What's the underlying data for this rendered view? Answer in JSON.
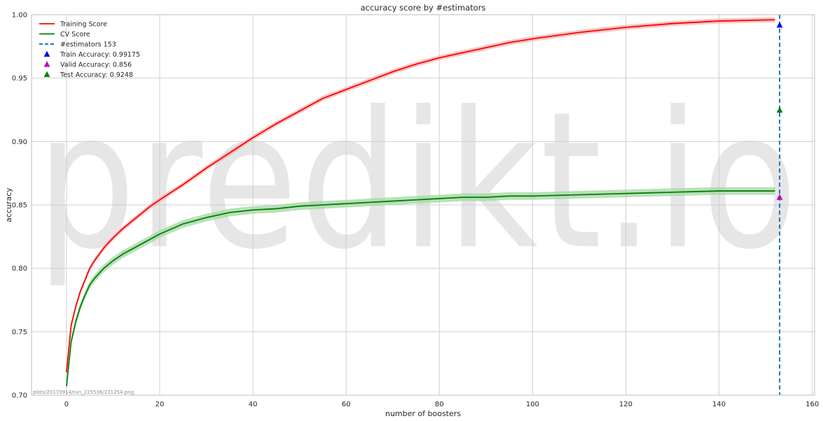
{
  "chart_data": {
    "type": "line",
    "title": "accuracy score by #estimators",
    "xlabel": "number of boosters",
    "ylabel": "accuracy",
    "xlim": [
      -7.5,
      160.5
    ],
    "ylim": [
      0.7,
      1.0
    ],
    "xticks": [
      0,
      20,
      40,
      60,
      80,
      100,
      120,
      140,
      160
    ],
    "yticks": [
      0.7,
      0.75,
      0.8,
      0.85,
      0.9,
      0.95,
      1.0
    ],
    "ytick_labels": [
      "0.70",
      "0.75",
      "0.80",
      "0.85",
      "0.90",
      "0.95",
      "1.00"
    ],
    "grid": true,
    "legend_position": "upper-left",
    "watermark": "predikt.io",
    "footnote": "plots/20170914/run_225536/231254.png",
    "series": [
      {
        "name": "Training Score",
        "color": "#ff0000",
        "band_color": "#f5b8b8",
        "x": [
          0,
          1,
          2,
          3,
          4,
          5,
          6,
          8,
          10,
          12,
          15,
          18,
          20,
          25,
          30,
          35,
          40,
          45,
          50,
          55,
          60,
          65,
          70,
          75,
          80,
          85,
          90,
          95,
          100,
          110,
          120,
          130,
          140,
          152
        ],
        "y": [
          0.718,
          0.755,
          0.77,
          0.782,
          0.791,
          0.8,
          0.806,
          0.816,
          0.824,
          0.831,
          0.84,
          0.849,
          0.854,
          0.866,
          0.879,
          0.891,
          0.903,
          0.914,
          0.924,
          0.934,
          0.941,
          0.948,
          0.955,
          0.961,
          0.966,
          0.97,
          0.974,
          0.978,
          0.981,
          0.986,
          0.99,
          0.993,
          0.995,
          0.996
        ],
        "band": 0.002
      },
      {
        "name": "CV Score",
        "color": "#008000",
        "band_color": "#a8d8a8",
        "x": [
          0,
          1,
          2,
          3,
          4,
          5,
          6,
          8,
          10,
          12,
          15,
          18,
          20,
          25,
          30,
          35,
          40,
          45,
          50,
          55,
          60,
          65,
          70,
          75,
          80,
          85,
          90,
          95,
          100,
          110,
          120,
          130,
          140,
          152
        ],
        "y": [
          0.707,
          0.742,
          0.758,
          0.77,
          0.779,
          0.787,
          0.792,
          0.8,
          0.806,
          0.811,
          0.817,
          0.823,
          0.827,
          0.835,
          0.84,
          0.844,
          0.846,
          0.847,
          0.849,
          0.85,
          0.851,
          0.852,
          0.853,
          0.854,
          0.855,
          0.856,
          0.856,
          0.857,
          0.857,
          0.858,
          0.859,
          0.86,
          0.861,
          0.861
        ],
        "band": 0.003
      }
    ],
    "vline": {
      "name": "#estimators 153",
      "x": 153,
      "color": "#1f77b4"
    },
    "markers": [
      {
        "name": "Train Accuracy: 0.99175",
        "x": 153,
        "y": 0.99175,
        "color": "#0000ff"
      },
      {
        "name": "Valid Accuracy: 0.856",
        "x": 153,
        "y": 0.856,
        "color": "#bf00bf"
      },
      {
        "name": "Test Accuracy: 0.9248",
        "x": 153,
        "y": 0.9248,
        "color": "#008000"
      }
    ]
  }
}
